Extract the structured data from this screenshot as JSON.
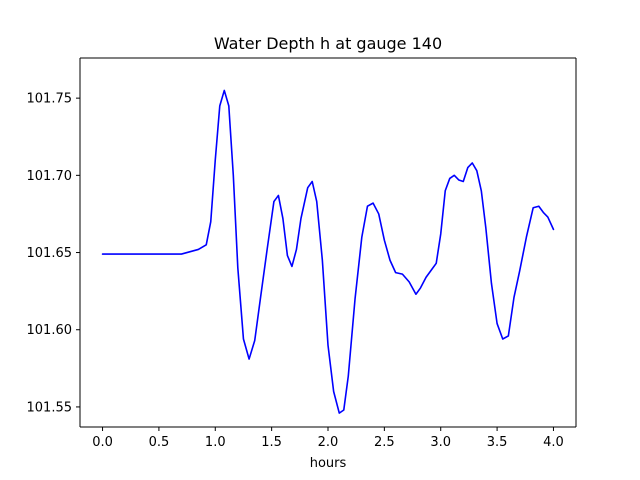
{
  "chart_data": {
    "type": "line",
    "title": "Water Depth h at gauge 140",
    "xlabel": "hours",
    "ylabel": "",
    "xlim": [
      -0.2,
      4.2
    ],
    "ylim": [
      101.537,
      101.776
    ],
    "xticks": [
      0.0,
      0.5,
      1.0,
      1.5,
      2.0,
      2.5,
      3.0,
      3.5,
      4.0
    ],
    "xtick_labels": [
      "0.0",
      "0.5",
      "1.0",
      "1.5",
      "2.0",
      "2.5",
      "3.0",
      "3.5",
      "4.0"
    ],
    "yticks": [
      101.55,
      101.6,
      101.65,
      101.7,
      101.75
    ],
    "ytick_labels": [
      "101.55",
      "101.60",
      "101.65",
      "101.70",
      "101.75"
    ],
    "grid": false,
    "series": [
      {
        "name": "",
        "color": "#0000ff",
        "x": [
          0.0,
          0.4,
          0.7,
          0.85,
          0.92,
          0.96,
          1.0,
          1.04,
          1.08,
          1.12,
          1.16,
          1.2,
          1.25,
          1.3,
          1.35,
          1.4,
          1.46,
          1.52,
          1.56,
          1.6,
          1.64,
          1.68,
          1.72,
          1.76,
          1.82,
          1.86,
          1.9,
          1.95,
          2.0,
          2.05,
          2.1,
          2.14,
          2.18,
          2.24,
          2.3,
          2.35,
          2.4,
          2.45,
          2.5,
          2.55,
          2.6,
          2.66,
          2.72,
          2.78,
          2.82,
          2.87,
          2.92,
          2.96,
          3.0,
          3.04,
          3.08,
          3.12,
          3.16,
          3.2,
          3.24,
          3.28,
          3.32,
          3.36,
          3.4,
          3.45,
          3.5,
          3.55,
          3.6,
          3.65,
          3.7,
          3.76,
          3.82,
          3.87,
          3.91,
          3.95,
          4.0
        ],
        "y": [
          101.649,
          101.649,
          101.649,
          101.652,
          101.655,
          101.67,
          101.71,
          101.745,
          101.755,
          101.745,
          101.7,
          101.64,
          101.594,
          101.581,
          101.593,
          101.62,
          101.652,
          101.683,
          101.687,
          101.672,
          101.648,
          101.641,
          101.652,
          101.672,
          101.692,
          101.696,
          101.683,
          101.645,
          101.59,
          101.56,
          101.546,
          101.548,
          101.57,
          101.62,
          101.66,
          101.68,
          101.682,
          101.675,
          101.658,
          101.645,
          101.637,
          101.636,
          101.631,
          101.623,
          101.627,
          101.634,
          101.639,
          101.643,
          101.662,
          101.69,
          101.698,
          101.7,
          101.697,
          101.696,
          101.705,
          101.708,
          101.703,
          101.69,
          101.666,
          101.63,
          101.604,
          101.594,
          101.596,
          101.621,
          101.638,
          101.66,
          101.679,
          101.68,
          101.676,
          101.673,
          101.665
        ]
      }
    ]
  }
}
